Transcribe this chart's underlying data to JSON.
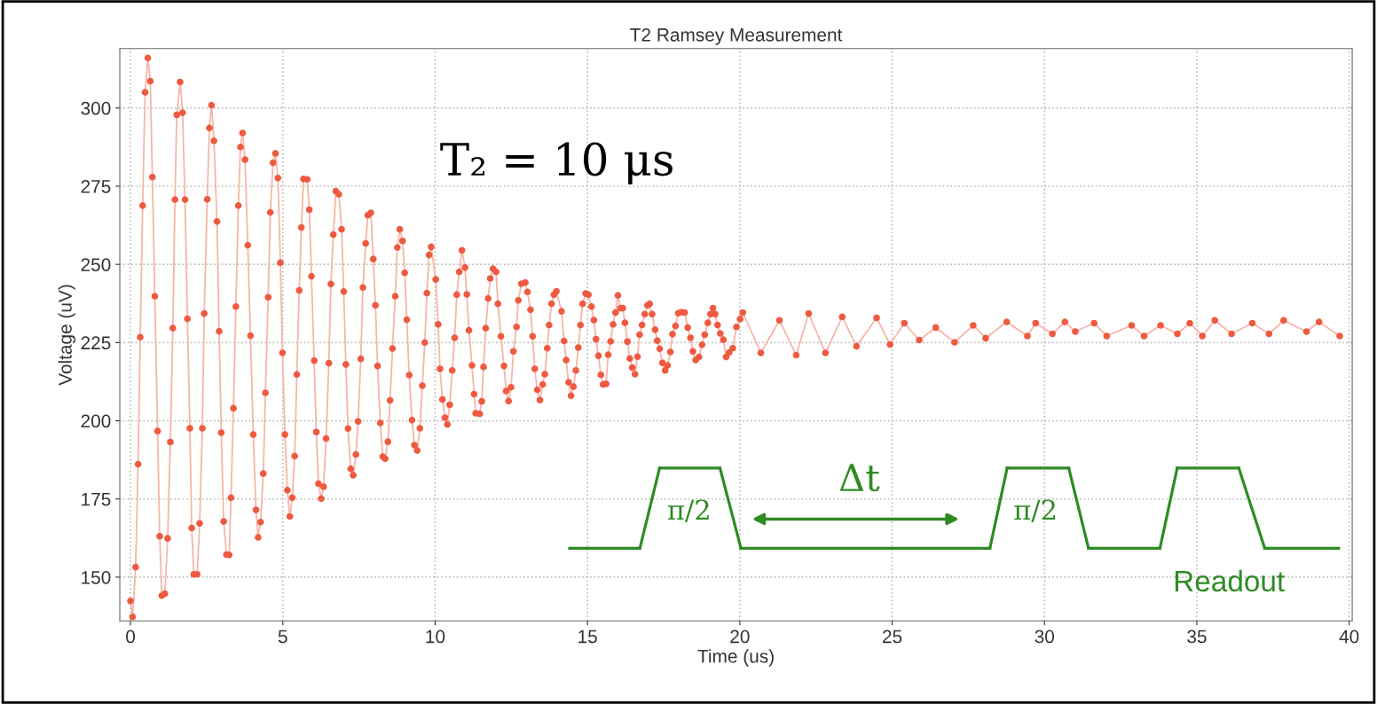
{
  "chart_data": {
    "type": "line",
    "title": "T2 Ramsey Measurement",
    "xlabel": "Time (us)",
    "ylabel": "Voltage (uV)",
    "annotations": [
      "T₂ = 10 μs",
      "π/2",
      "Δt",
      "π/2",
      "Readout"
    ],
    "xlim": [
      -0.35,
      40.1
    ],
    "ylim": [
      136,
      319
    ],
    "xticks": [
      0,
      5,
      10,
      15,
      20,
      25,
      30,
      35,
      40
    ],
    "yticks": [
      150,
      175,
      200,
      225,
      250,
      275,
      300
    ],
    "grid": true,
    "marker": "circle",
    "line_style": "solid",
    "series": [
      {
        "color": "#ee5a40",
        "x": [
          0.0,
          0.07,
          0.17,
          0.25,
          0.32,
          0.4,
          0.48,
          0.57,
          0.65,
          0.72,
          0.8,
          0.89,
          0.96,
          1.03,
          1.13,
          1.22,
          1.31,
          1.39,
          1.46,
          1.52,
          1.63,
          1.71,
          1.79,
          1.87,
          1.95,
          2.01,
          2.08,
          2.19,
          2.27,
          2.36,
          2.42,
          2.52,
          2.59,
          2.66,
          2.74,
          2.84,
          2.91,
          2.98,
          3.06,
          3.15,
          3.24,
          3.3,
          3.38,
          3.46,
          3.54,
          3.61,
          3.68,
          3.76,
          3.85,
          3.94,
          4.03,
          4.12,
          4.19,
          4.27,
          4.36,
          4.43,
          4.52,
          4.59,
          4.68,
          4.76,
          4.84,
          4.92,
          4.99,
          5.07,
          5.15,
          5.23,
          5.31,
          5.39,
          5.46,
          5.54,
          5.61,
          5.68,
          5.8,
          5.87,
          5.94,
          6.03,
          6.1,
          6.17,
          6.26,
          6.34,
          6.42,
          6.51,
          6.58,
          6.66,
          6.74,
          6.84,
          6.93,
          7.0,
          7.07,
          7.14,
          7.23,
          7.31,
          7.4,
          7.47,
          7.56,
          7.63,
          7.72,
          7.79,
          7.89,
          7.97,
          8.04,
          8.11,
          8.2,
          8.28,
          8.36,
          8.45,
          8.52,
          8.6,
          8.69,
          8.76,
          8.84,
          8.93,
          9.0,
          9.07,
          9.15,
          9.24,
          9.32,
          9.41,
          9.5,
          9.58,
          9.66,
          9.73,
          9.8,
          9.87,
          10.02,
          10.1,
          10.16,
          10.24,
          10.32,
          10.4,
          10.48,
          10.56,
          10.64,
          10.71,
          10.79,
          10.88,
          10.98,
          11.04,
          11.11,
          11.21,
          11.28,
          11.33,
          11.46,
          11.53,
          11.59,
          11.66,
          11.74,
          11.81,
          11.9,
          12.0,
          12.06,
          12.16,
          12.26,
          12.33,
          12.41,
          12.49,
          12.57,
          12.67,
          12.73,
          12.83,
          12.96,
          13.03,
          13.13,
          13.2,
          13.27,
          13.35,
          13.44,
          13.53,
          13.6,
          13.68,
          13.74,
          13.82,
          13.9,
          13.98,
          14.15,
          14.23,
          14.3,
          14.38,
          14.46,
          14.54,
          14.62,
          14.7,
          14.77,
          14.84,
          14.94,
          15.03,
          15.13,
          15.21,
          15.28,
          15.36,
          15.44,
          15.51,
          15.61,
          15.68,
          15.76,
          15.84,
          15.92,
          16.0,
          16.08,
          16.16,
          16.23,
          16.31,
          16.39,
          16.47,
          16.56,
          16.64,
          16.71,
          16.79,
          16.88,
          16.97,
          17.04,
          17.12,
          17.22,
          17.29,
          17.37,
          17.46,
          17.55,
          17.63,
          17.72,
          17.79,
          17.89,
          17.98,
          18.08,
          18.19,
          18.29,
          18.38,
          18.46,
          18.55,
          18.66,
          18.76,
          18.85,
          18.95,
          19.04,
          19.12,
          19.19,
          19.27,
          19.36,
          19.46,
          19.55,
          19.65,
          19.77,
          19.89,
          20.01,
          20.1,
          20.69,
          21.3,
          21.85,
          22.26,
          22.81,
          23.36,
          23.83,
          24.49,
          24.93,
          25.4,
          25.89,
          26.43,
          27.05,
          27.66,
          28.07,
          28.76,
          29.44,
          29.71,
          30.26,
          30.67,
          31.01,
          31.63,
          32.04,
          32.86,
          33.27,
          33.81,
          34.36,
          34.77,
          35.18,
          35.59,
          36.14,
          36.82,
          37.37,
          37.85,
          38.6,
          39.01,
          39.69
        ],
        "values": [
          142.4,
          137.3,
          153.2,
          186.1,
          226.7,
          268.8,
          305.0,
          316.0,
          308.6,
          277.9,
          239.8,
          196.7,
          163.1,
          144.1,
          144.7,
          162.4,
          193.2,
          229.6,
          270.7,
          297.8,
          308.3,
          298.5,
          270.7,
          232.6,
          197.6,
          165.7,
          150.9,
          150.9,
          167.2,
          197.6,
          234.3,
          270.8,
          293.6,
          300.9,
          289.5,
          263.7,
          228.6,
          196.2,
          167.8,
          157.2,
          157.1,
          175.4,
          204.0,
          236.5,
          268.8,
          287.5,
          292.0,
          283.5,
          256.1,
          227.2,
          195.6,
          171.5,
          162.7,
          167.6,
          183.1,
          208.9,
          239.5,
          266.6,
          282.5,
          285.5,
          277.6,
          250.5,
          221.7,
          195.6,
          177.8,
          169.4,
          175.4,
          188.7,
          214.8,
          241.7,
          261.8,
          277.3,
          277.2,
          267.5,
          246.2,
          219.2,
          196.4,
          179.9,
          175.1,
          178.9,
          194.3,
          218.4,
          243.7,
          259.5,
          273.4,
          272.4,
          261.2,
          241.3,
          218.0,
          197.5,
          184.6,
          182.6,
          189.2,
          199.8,
          219.8,
          242.6,
          256.7,
          265.7,
          266.5,
          251.7,
          236.9,
          217.5,
          199.3,
          188.5,
          187.9,
          193.3,
          206.5,
          223.1,
          239.8,
          255.4,
          261.2,
          257.5,
          247.3,
          232.3,
          214.6,
          200.2,
          192.2,
          190.5,
          197.6,
          211.2,
          225.0,
          240.8,
          253.0,
          255.6,
          245.2,
          230.8,
          216.6,
          206.8,
          201.0,
          198.8,
          205.1,
          216.1,
          226.5,
          240.3,
          247.6,
          254.5,
          249.0,
          240.4,
          228.9,
          217.7,
          208.5,
          202.4,
          202.2,
          206.2,
          217.2,
          229.6,
          239.1,
          245.5,
          248.6,
          247.6,
          237.4,
          227.0,
          217.5,
          209.5,
          206.3,
          210.7,
          222.2,
          230.0,
          238.5,
          243.8,
          244.2,
          241.2,
          235.5,
          227.0,
          216.6,
          209.9,
          206.6,
          211.6,
          214.9,
          223.2,
          230.6,
          237.4,
          240.3,
          241.4,
          235.0,
          225.5,
          219.4,
          212.3,
          208.0,
          210.9,
          216.1,
          223.4,
          230.6,
          237.4,
          240.7,
          240.3,
          236.5,
          232.2,
          226.1,
          220.8,
          214.7,
          211.6,
          211.8,
          221.1,
          225.4,
          230.8,
          234.6,
          240.1,
          236.0,
          236.0,
          231.3,
          225.3,
          219.9,
          217.0,
          214.9,
          220.5,
          227.5,
          230.6,
          234.1,
          236.9,
          237.4,
          234.1,
          229.1,
          225.6,
          223.0,
          218.5,
          216.1,
          217.7,
          222.0,
          227.7,
          230.3,
          234.4,
          234.7,
          234.6,
          229.8,
          226.5,
          222.2,
          219.4,
          220.4,
          224.3,
          227.5,
          231.3,
          234.1,
          236.0,
          234.1,
          230.6,
          227.9,
          225.9,
          220.4,
          221.8,
          223.2,
          230.0,
          232.5,
          234.6,
          221.7,
          232.1,
          221.0,
          234.3,
          221.7,
          233.2,
          223.8,
          232.9,
          224.4,
          231.2,
          225.8,
          229.8,
          225.1,
          230.5,
          226.4,
          231.6,
          227.1,
          231.2,
          227.8,
          231.6,
          228.5,
          231.2,
          227.1,
          230.5,
          227.1,
          230.5,
          227.8,
          231.2,
          227.1,
          232.1,
          227.8,
          231.2,
          227.8,
          232.1,
          228.5,
          231.6,
          227.1
        ]
      }
    ]
  }
}
